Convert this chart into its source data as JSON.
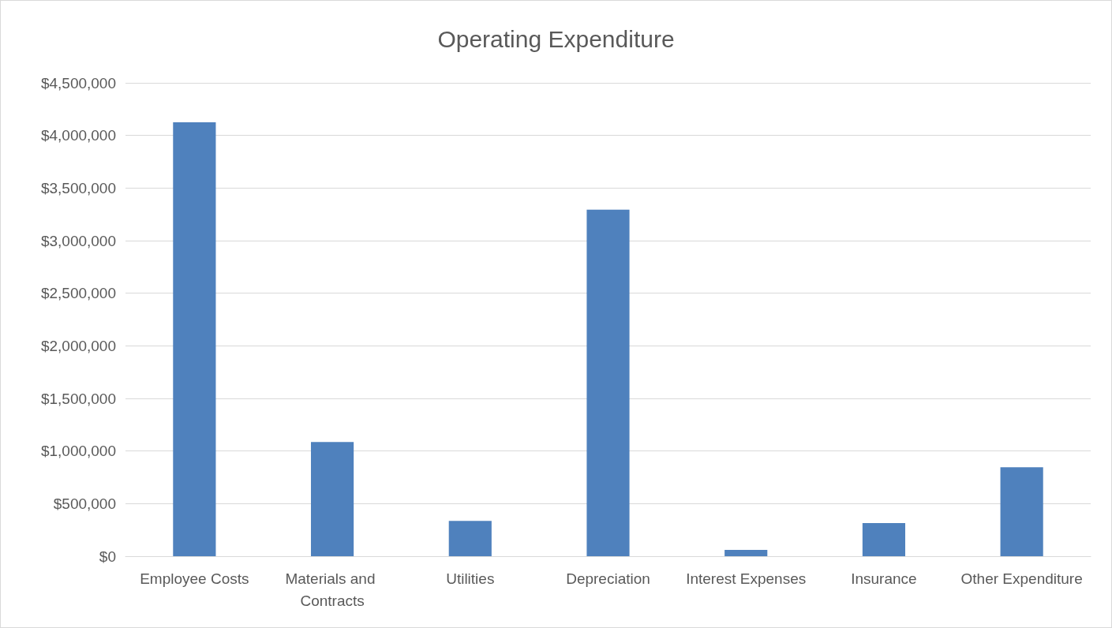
{
  "chart_data": {
    "type": "bar",
    "title": "Operating Expenditure",
    "categories": [
      "Employee Costs",
      "Materials and Contracts",
      "Utilities",
      "Depreciation",
      "Interest Expenses",
      "Insurance",
      "Other Expenditure"
    ],
    "values": [
      4125000,
      1085000,
      335000,
      3295000,
      60000,
      315000,
      845000
    ],
    "color": "#4f81bd",
    "ylim": [
      0,
      4500000
    ],
    "yticks": [
      {
        "value": 0,
        "label": "$0"
      },
      {
        "value": 500000,
        "label": "$500,000"
      },
      {
        "value": 1000000,
        "label": "$1,000,000"
      },
      {
        "value": 1500000,
        "label": "$1,500,000"
      },
      {
        "value": 2000000,
        "label": "$2,000,000"
      },
      {
        "value": 2500000,
        "label": "$2,500,000"
      },
      {
        "value": 3000000,
        "label": "$3,000,000"
      },
      {
        "value": 3500000,
        "label": "$3,500,000"
      },
      {
        "value": 4000000,
        "label": "$4,000,000"
      },
      {
        "value": 4500000,
        "label": "$4,500,000"
      }
    ],
    "grid": "y"
  }
}
